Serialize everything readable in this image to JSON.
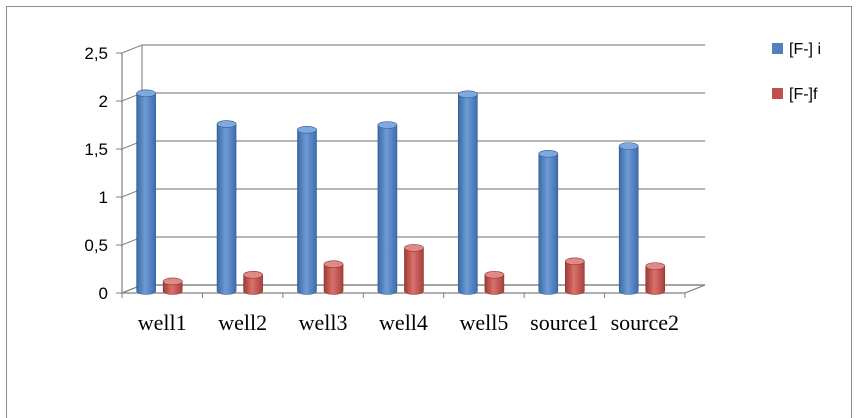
{
  "chart_data": {
    "type": "bar",
    "categories": [
      "well1",
      "well2",
      "well3",
      "well4",
      "well5",
      "source1",
      "source2"
    ],
    "series": [
      {
        "name": "[F-] i",
        "values": [
          2.08,
          1.76,
          1.7,
          1.75,
          2.07,
          1.45,
          1.53
        ],
        "color": "#4f81bd"
      },
      {
        "name": "[F-]f",
        "values": [
          0.12,
          0.19,
          0.3,
          0.47,
          0.19,
          0.33,
          0.28
        ],
        "color": "#c0504d"
      }
    ],
    "yticks": [
      "0",
      "0,5",
      "1",
      "1,5",
      "2",
      "2,5"
    ],
    "ylim": [
      0,
      2.5
    ],
    "grid": true,
    "legend_position": "right",
    "title": "",
    "xlabel": "",
    "ylabel": ""
  }
}
